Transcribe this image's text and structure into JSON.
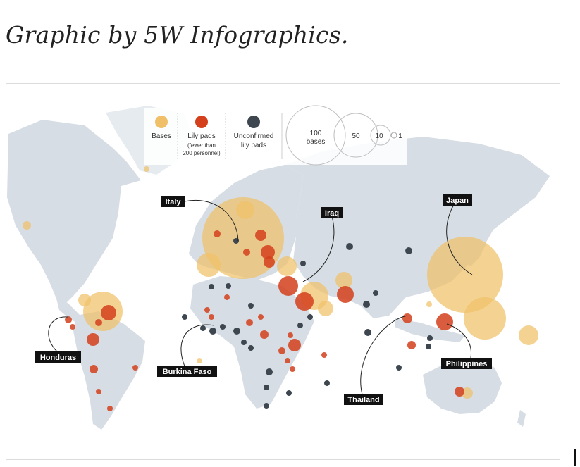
{
  "caption": "Graphic by 5W Infographics.",
  "legend": {
    "bases_label": "Bases",
    "lily_label": "Lily pads",
    "lily_sub1": "(fewer than",
    "lily_sub2": "200 personnel)",
    "unconfirmed_label1": "Unconfirmed",
    "unconfirmed_label2": "lily pads",
    "size_100_a": "100",
    "size_100_b": "bases",
    "size_50": "50",
    "size_10": "10",
    "size_1": "1"
  },
  "colors": {
    "bases": "#f0c068",
    "lily": "#d4401c",
    "unconfirmed": "#3e4750",
    "land": "#d6dde4"
  },
  "labels": {
    "italy": "Italy",
    "iraq": "Iraq",
    "japan": "Japan",
    "honduras": "Honduras",
    "burkina": "Burkina Faso",
    "thailand": "Thailand",
    "philippines": "Philippines"
  }
}
